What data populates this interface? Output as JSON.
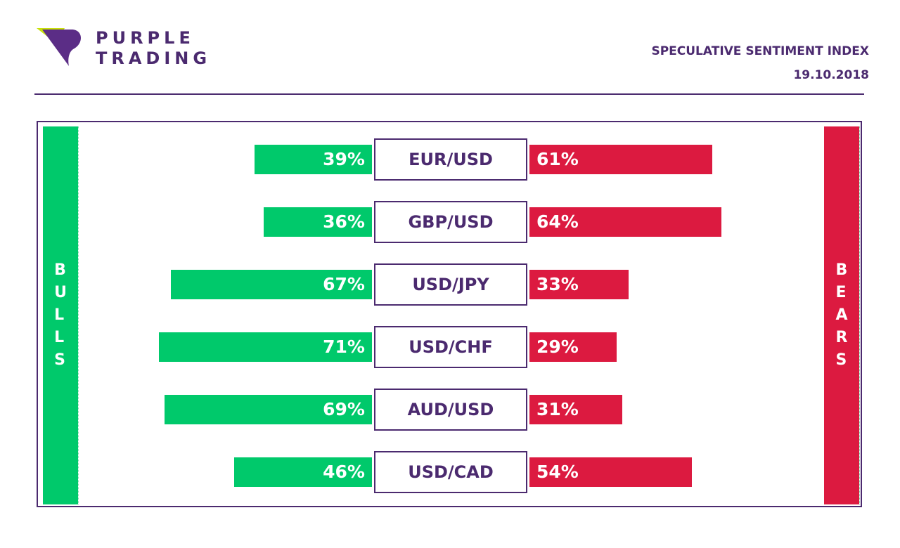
{
  "brand": {
    "line1": "PURPLE",
    "line2": "TRADING",
    "colors": {
      "purple": "#4b2a6f",
      "lime": "#c8e00a"
    }
  },
  "header": {
    "title": "SPECULATIVE SENTIMENT INDEX",
    "date": "19.10.2018"
  },
  "labels": {
    "bulls": "BULLS",
    "bears": "BEARS"
  },
  "colors": {
    "bulls": "#00c96b",
    "bears": "#dc1a40",
    "pair_border": "#4b2a6f"
  },
  "chart_data": {
    "type": "bar",
    "categories": [
      "EUR/USD",
      "GBP/USD",
      "USD/JPY",
      "USD/CHF",
      "AUD/USD",
      "USD/CAD"
    ],
    "series": [
      {
        "name": "BULLS",
        "values": [
          39,
          36,
          67,
          71,
          69,
          46
        ],
        "labels": [
          "39%",
          "36%",
          "67%",
          "71%",
          "69%",
          "46%"
        ]
      },
      {
        "name": "BEARS",
        "values": [
          61,
          64,
          33,
          29,
          31,
          54
        ],
        "labels": [
          "61%",
          "64%",
          "33%",
          "29%",
          "31%",
          "54%"
        ]
      }
    ],
    "unit": "%"
  }
}
